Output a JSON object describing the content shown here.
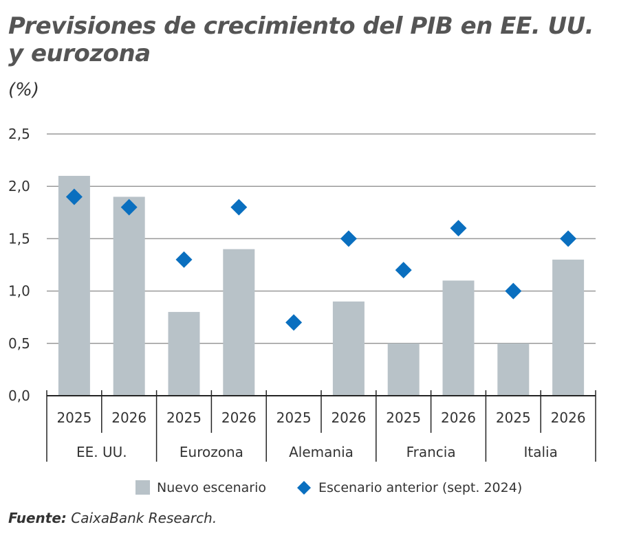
{
  "title_line1": "Previsiones de crecimiento del PIB en EE. UU.",
  "title_line2": "y eurozona",
  "unit": "(%)",
  "source_label": "Fuente:",
  "source_text": "CaixaBank Research.",
  "chart_data": {
    "type": "bar",
    "title": "Previsiones de crecimiento del PIB en EE. UU. y eurozona",
    "ylabel": "(%)",
    "ylim": [
      0,
      2.5
    ],
    "yticks": [
      "0,0",
      "0,5",
      "1,0",
      "1,5",
      "2,0",
      "2,5"
    ],
    "grid": true,
    "legend": "bottom",
    "groups": [
      "EE. UU.",
      "Eurozona",
      "Alemania",
      "Francia",
      "Italia"
    ],
    "categories": [
      "2025",
      "2026",
      "2025",
      "2026",
      "2025",
      "2026",
      "2025",
      "2026",
      "2025",
      "2026"
    ],
    "series": [
      {
        "name": "Nuevo escenario",
        "mark": "bar",
        "color": "#b8c2c8",
        "values": [
          2.1,
          1.9,
          0.8,
          1.4,
          0,
          0.9,
          0.5,
          1.1,
          0.5,
          1.3
        ]
      },
      {
        "name": "Escenario anterior (sept. 2024)",
        "mark": "diamond",
        "color": "#0a6fbf",
        "values": [
          1.9,
          1.8,
          1.3,
          1.8,
          0.7,
          1.5,
          1.2,
          1.6,
          1.0,
          1.5
        ]
      }
    ]
  }
}
